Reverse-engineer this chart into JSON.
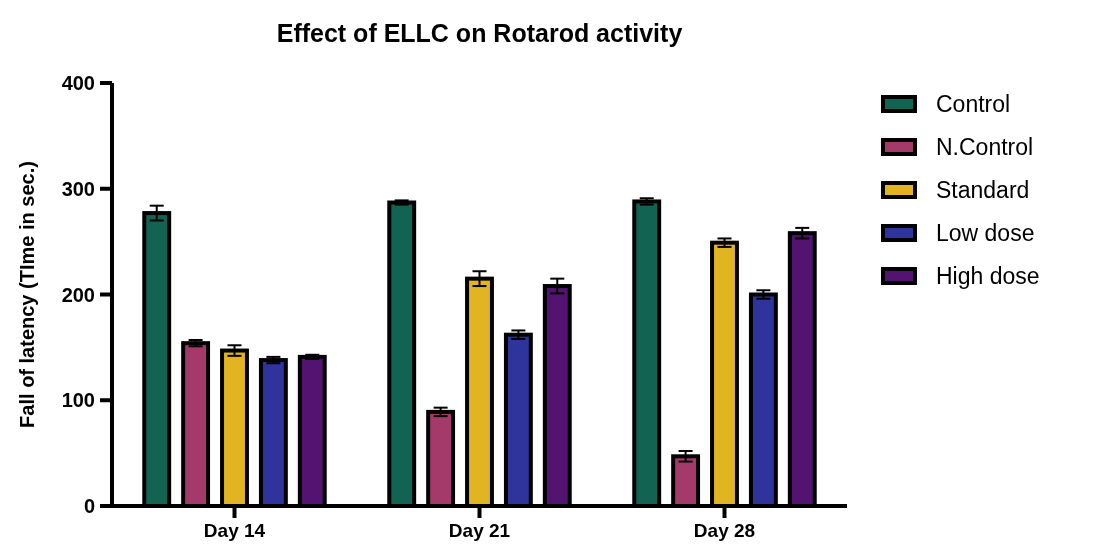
{
  "chart_data": {
    "type": "bar",
    "title": "Effect of ELLC on Rotarod activity",
    "ylabel": "Fall of latency (TIme in sec.)",
    "categories": [
      "Day 14",
      "Day 21",
      "Day 28"
    ],
    "series": [
      {
        "name": "Control",
        "color": "#136352",
        "values": [
          277,
          287,
          288
        ],
        "errors": [
          7,
          2,
          3
        ]
      },
      {
        "name": "N.Control",
        "color": "#a33a6a",
        "values": [
          154,
          89,
          47
        ],
        "errors": [
          3,
          4,
          5
        ]
      },
      {
        "name": "Standard",
        "color": "#e1b521",
        "values": [
          147,
          215,
          249
        ],
        "errors": [
          5,
          7,
          4
        ]
      },
      {
        "name": "Low dose",
        "color": "#2e349c",
        "values": [
          138,
          162,
          200
        ],
        "errors": [
          3,
          4,
          4
        ]
      },
      {
        "name": "High dose",
        "color": "#521470",
        "values": [
          141,
          208,
          258
        ],
        "errors": [
          2,
          7,
          5
        ]
      }
    ],
    "ylim": [
      0,
      400
    ],
    "yticks": [
      0,
      100,
      200,
      300,
      400
    ],
    "legend": "right"
  }
}
